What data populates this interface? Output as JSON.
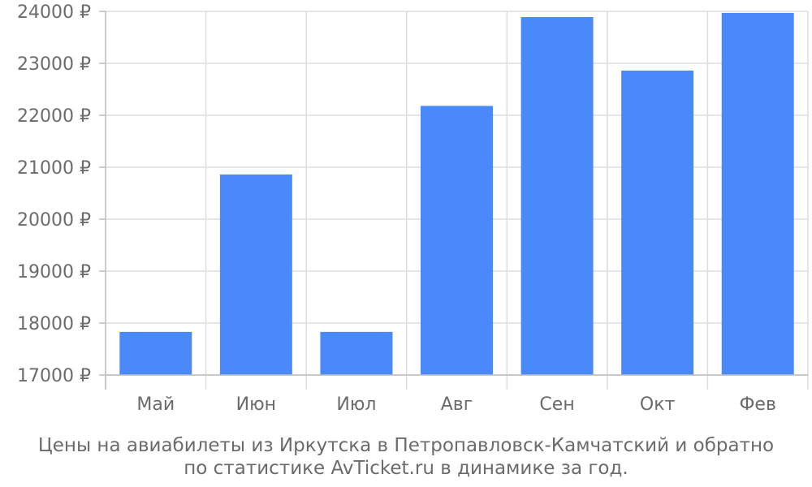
{
  "chart_data": {
    "type": "bar",
    "categories": [
      "Май",
      "Июн",
      "Июл",
      "Авг",
      "Сен",
      "Окт",
      "Фев"
    ],
    "values": [
      17830,
      20860,
      17830,
      22180,
      23890,
      22860,
      23970
    ],
    "ylim": [
      17000,
      24000
    ],
    "y_ticks": [
      17000,
      18000,
      19000,
      20000,
      21000,
      22000,
      23000,
      24000
    ],
    "y_tick_suffix": " ₽",
    "grid": true,
    "colors": {
      "bar": "#4a89f9",
      "grid": "#dddddd",
      "axis": "#bbbbbb",
      "text": "#6b6b6b"
    }
  },
  "caption": {
    "line1": "Цены на авиабилеты из Иркутска в Петропавловск-Камчатский и обратно",
    "line2": "по статистике AvTicket.ru в динамике за год."
  }
}
